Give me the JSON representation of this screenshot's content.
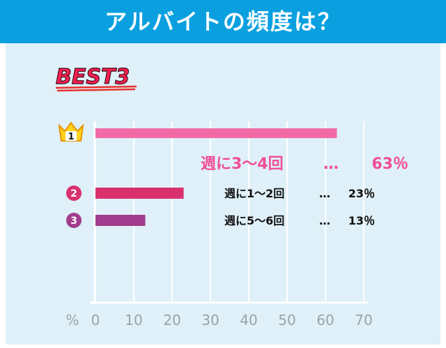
{
  "title": "アルバイトの頻度は？",
  "badge": "BEST3",
  "chart_data": {
    "type": "bar",
    "orientation": "horizontal",
    "unit_label": "%",
    "xlim": [
      0,
      70
    ],
    "x_ticks": [
      0,
      10,
      20,
      30,
      40,
      50,
      60,
      70
    ],
    "grid": true,
    "categories": [
      "週に3〜4回",
      "週に1〜2回",
      "週に5〜6回"
    ],
    "values": [
      63,
      23,
      13
    ],
    "ranks": [
      "1",
      "2",
      "3"
    ],
    "value_labels": [
      "63%",
      "23%",
      "13%"
    ],
    "colors": [
      "#f26aa6",
      "#d9306e",
      "#a23c8c"
    ]
  },
  "labels": [
    {
      "text": "週に3～4回",
      "sep": "…",
      "pct": "63％"
    },
    {
      "text": "週に1～2回",
      "sep": "…",
      "pct": "23％"
    },
    {
      "text": "週に5～6回",
      "sep": "…",
      "pct": "13％"
    }
  ]
}
